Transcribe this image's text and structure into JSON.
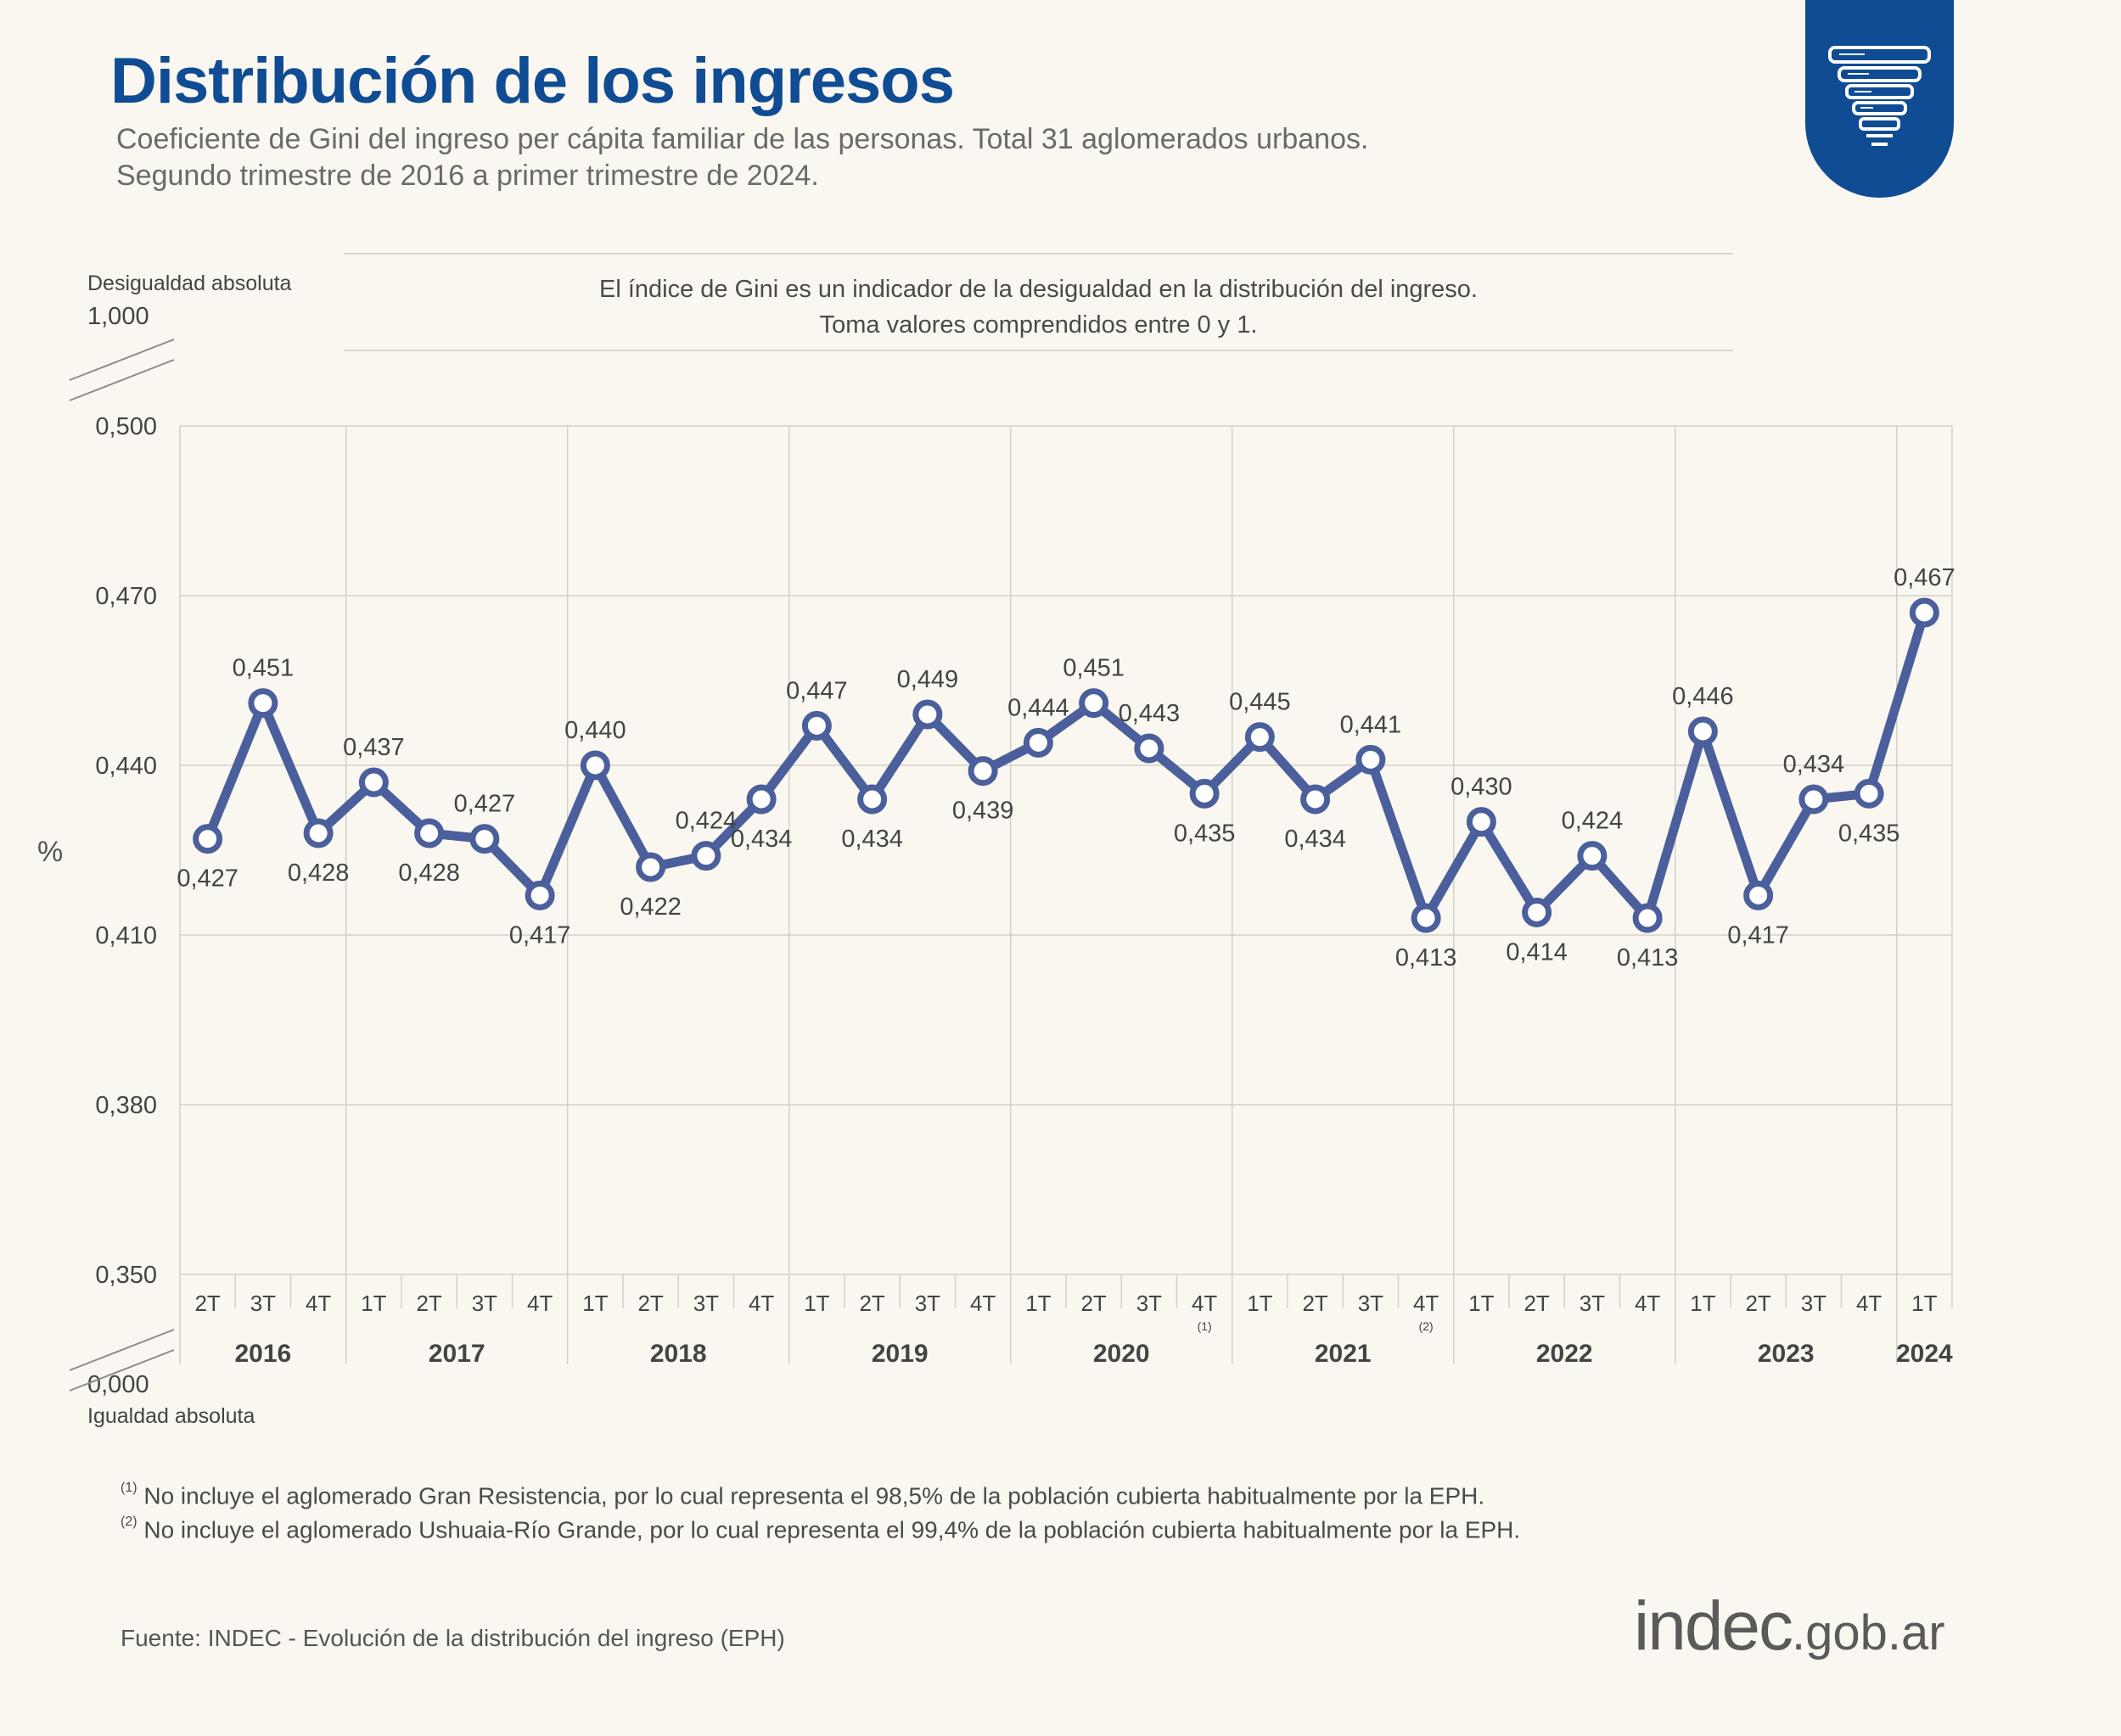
{
  "header": {
    "title": "Distribución de los ingresos",
    "subtitle_line1": "Coeficiente de Gini del ingreso per cápita familiar de las personas. Total 31 aglomerados urbanos.",
    "subtitle_line2": "Segundo trimestre de 2016 a primer trimestre de 2024."
  },
  "info": {
    "line1": "El índice de Gini es un indicador de la desigualdad en la distribución del ingreso.",
    "line2": "Toma valores comprendidos entre 0 y 1."
  },
  "axis_extremes": {
    "top_label": "Desigualdad absoluta",
    "top_value": "1,000",
    "bottom_label": "Igualdad absoluta",
    "bottom_value": "0,000",
    "unit": "%"
  },
  "chart_data": {
    "type": "line",
    "title": "Coeficiente de Gini del ingreso per cápita familiar",
    "ylabel": "%",
    "ylim": [
      0.35,
      0.5
    ],
    "yticks": [
      0.35,
      0.38,
      0.41,
      0.44,
      0.47,
      0.5
    ],
    "ytick_labels": [
      "0,350",
      "0,380",
      "0,410",
      "0,440",
      "0,470",
      "0,500"
    ],
    "grid": true,
    "categories": [
      "2T",
      "3T",
      "4T",
      "1T",
      "2T",
      "3T",
      "4T",
      "1T",
      "2T",
      "3T",
      "4T",
      "1T",
      "2T",
      "3T",
      "4T",
      "1T",
      "2T",
      "3T",
      "4T",
      "1T",
      "2T",
      "3T",
      "4T",
      "1T",
      "2T",
      "3T",
      "4T",
      "1T",
      "2T",
      "3T",
      "4T",
      "1T"
    ],
    "category_footnotes": {
      "18": "(1)",
      "22": "(2)"
    },
    "years": [
      {
        "label": "2016",
        "start": 0,
        "count": 3
      },
      {
        "label": "2017",
        "start": 3,
        "count": 4
      },
      {
        "label": "2018",
        "start": 7,
        "count": 4
      },
      {
        "label": "2019",
        "start": 11,
        "count": 4
      },
      {
        "label": "2020",
        "start": 15,
        "count": 4
      },
      {
        "label": "2021",
        "start": 19,
        "count": 4
      },
      {
        "label": "2022",
        "start": 23,
        "count": 4
      },
      {
        "label": "2023",
        "start": 27,
        "count": 4
      },
      {
        "label": "2024",
        "start": 31,
        "count": 1
      }
    ],
    "series": [
      {
        "name": "Coeficiente de Gini",
        "color": "#4a5f9b",
        "values": [
          0.427,
          0.451,
          0.428,
          0.437,
          0.428,
          0.427,
          0.417,
          0.44,
          0.422,
          0.424,
          0.434,
          0.447,
          0.434,
          0.449,
          0.439,
          0.444,
          0.451,
          0.443,
          0.435,
          0.445,
          0.434,
          0.441,
          0.413,
          0.43,
          0.414,
          0.424,
          0.413,
          0.446,
          0.417,
          0.434,
          0.435,
          0.467
        ],
        "labels": [
          "0,427",
          "0,451",
          "0,428",
          "0,437",
          "0,428",
          "0,427",
          "0,417",
          "0,440",
          "0,422",
          "0,424",
          "0,434",
          "0,447",
          "0,434",
          "0,449",
          "0,439",
          "0,444",
          "0,451",
          "0,443",
          "0,435",
          "0,445",
          "0,434",
          "0,441",
          "0,413",
          "0,430",
          "0,414",
          "0,424",
          "0,413",
          "0,446",
          "0,417",
          "0,434",
          "0,435",
          "0,467"
        ],
        "label_pos": [
          "below",
          "above",
          "below",
          "above",
          "below",
          "above",
          "below",
          "above",
          "below",
          "above",
          "below",
          "above",
          "below",
          "above",
          "below",
          "above",
          "above",
          "above",
          "below",
          "above",
          "below",
          "above",
          "below",
          "above",
          "below",
          "above",
          "below",
          "above",
          "below",
          "above",
          "below",
          "above"
        ]
      }
    ]
  },
  "footnotes": {
    "n1_mark": "(1)",
    "n1_text": " No incluye el aglomerado Gran Resistencia, por lo cual representa el 98,5% de la población cubierta habitualmente por la EPH.",
    "n2_mark": "(2)",
    "n2_text": " No incluye el aglomerado Ushuaia-Río Grande, por lo cual representa el 99,4% de la población cubierta habitualmente por la EPH."
  },
  "source": "Fuente: INDEC - Evolución de la distribución del ingreso (EPH)",
  "logo": {
    "part1": "in",
    "part2": "dec",
    "domain": ".gob.ar"
  }
}
